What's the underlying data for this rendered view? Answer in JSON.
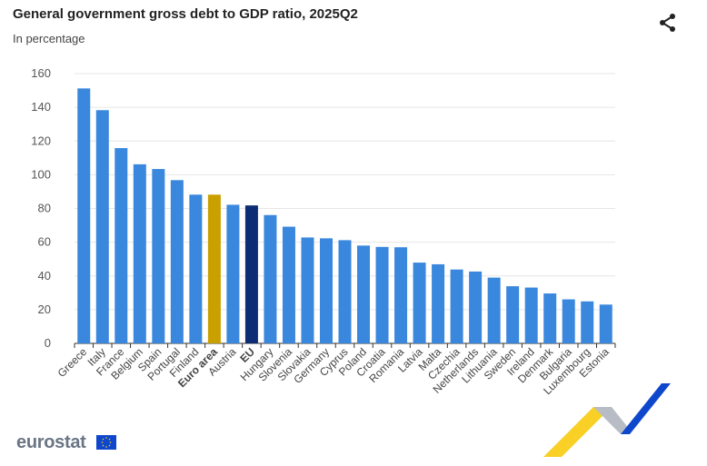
{
  "header": {
    "title": "General government gross debt to GDP ratio, 2025Q2",
    "subtitle": "In percentage",
    "share_icon": "share-icon"
  },
  "footer": {
    "logo_text": "eurostat"
  },
  "colors": {
    "default": "#3a87de",
    "euro_area": "#c9a000",
    "eu": "#0d2c73",
    "grid": "#e6e6e6",
    "axis": "#333333"
  },
  "chart_data": {
    "type": "bar",
    "title": "General government gross debt to GDP ratio, 2025Q2",
    "subtitle": "In percentage",
    "xlabel": "",
    "ylabel": "",
    "ylim": [
      0,
      160
    ],
    "yticks": [
      0,
      20,
      40,
      60,
      80,
      100,
      120,
      140,
      160
    ],
    "grid": true,
    "categories": [
      "Greece",
      "Italy",
      "France",
      "Belgium",
      "Spain",
      "Portugal",
      "Finland",
      "Euro area",
      "Austria",
      "EU",
      "Hungary",
      "Slovenia",
      "Slovakia",
      "Germany",
      "Cyprus",
      "Poland",
      "Croatia",
      "Romania",
      "Latvia",
      "Malta",
      "Czechia",
      "Netherlands",
      "Lithuania",
      "Sweden",
      "Ireland",
      "Denmark",
      "Bulgaria",
      "Luxembourg",
      "Estonia"
    ],
    "values": [
      151.2,
      138.3,
      115.8,
      106.2,
      103.4,
      96.8,
      88.2,
      88.2,
      82.2,
      81.8,
      76.1,
      69.2,
      62.8,
      62.3,
      61.2,
      58.0,
      57.2,
      57.0,
      47.9,
      46.9,
      43.8,
      42.6,
      39.0,
      33.9,
      33.1,
      29.6,
      26.1,
      24.9,
      23.0
    ],
    "highlight": {
      "Euro area": "euro_area",
      "EU": "eu"
    },
    "bold_categories": [
      "Euro area",
      "EU"
    ]
  }
}
